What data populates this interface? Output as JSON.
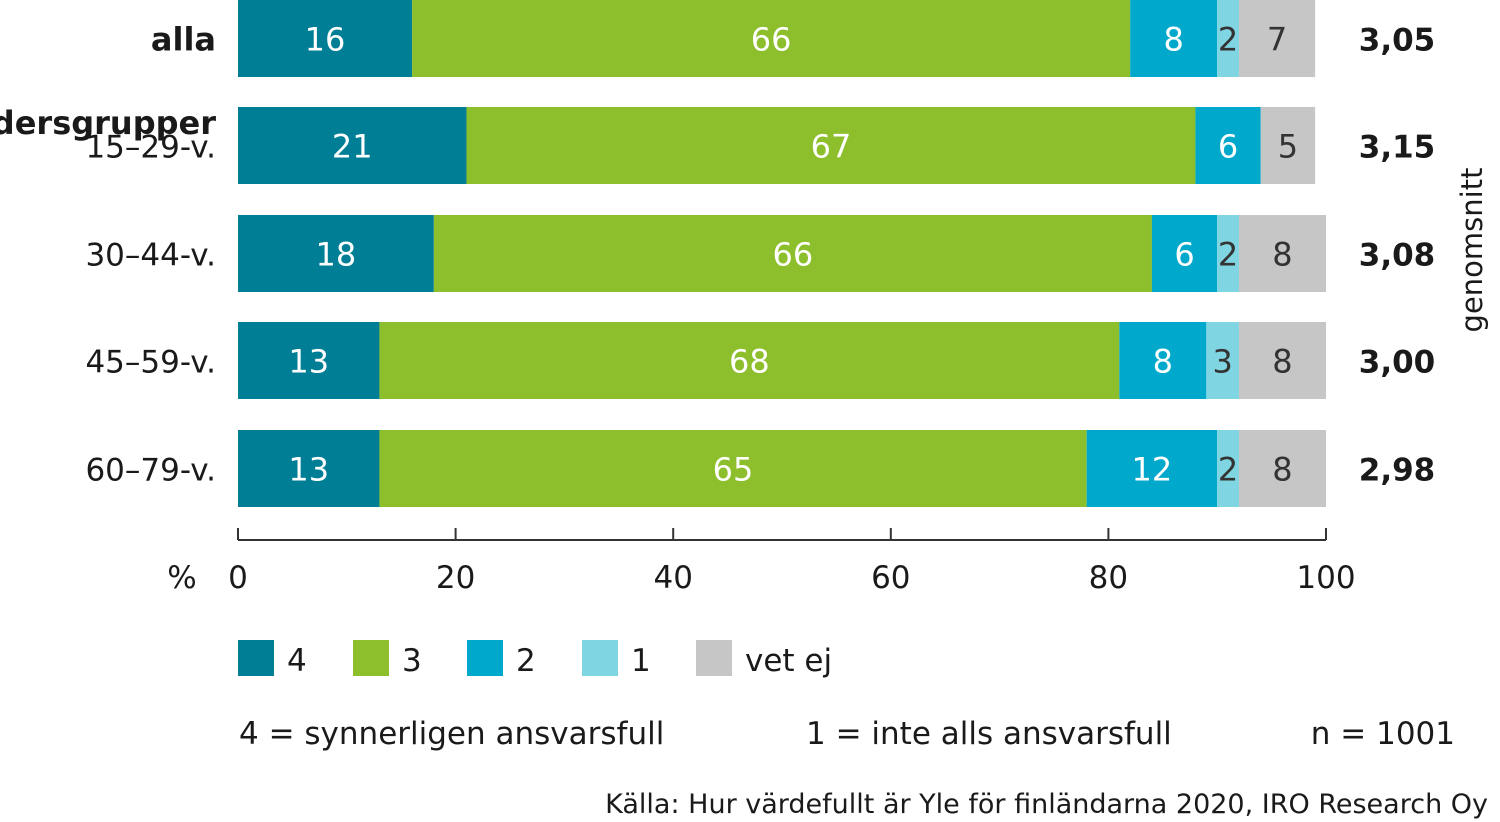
{
  "chart_data": {
    "type": "bar",
    "orientation": "horizontal",
    "stacked": true,
    "xlim": [
      0,
      100
    ],
    "x_ticks": [
      0,
      20,
      40,
      60,
      80,
      100
    ],
    "x_unit_label": "%",
    "categories": [
      "alla",
      "15–29-v.",
      "30–44-v.",
      "45–59-v.",
      "60–79-v."
    ],
    "group_heading": "åldersgrupper",
    "series": [
      {
        "name": "4",
        "color": "#007E95",
        "values": [
          16,
          21,
          18,
          13,
          13
        ]
      },
      {
        "name": "3",
        "color": "#8DBE2B",
        "values": [
          66,
          67,
          66,
          68,
          65
        ]
      },
      {
        "name": "2",
        "color": "#00A9CB",
        "values": [
          8,
          6,
          6,
          8,
          12
        ]
      },
      {
        "name": "1",
        "color": "#7FD5E2",
        "values": [
          2,
          0,
          2,
          3,
          2
        ]
      },
      {
        "name": "vet ej",
        "color": "#C6C6C6",
        "values": [
          7,
          5,
          8,
          8,
          8
        ]
      }
    ],
    "averages": [
      "3,05",
      "3,15",
      "3,08",
      "3,00",
      "2,98"
    ],
    "averages_label": "genomsnitt",
    "scale_note_high": "4 = synnerligen ansvarsfull",
    "scale_note_low": "1 = inte alls ansvarsfull",
    "sample_size": "n = 1001",
    "source": "Källa: Hur värdefullt är Yle för finländarna 2020, IRO Research Oy",
    "grid": false,
    "legend_position": "bottom"
  }
}
